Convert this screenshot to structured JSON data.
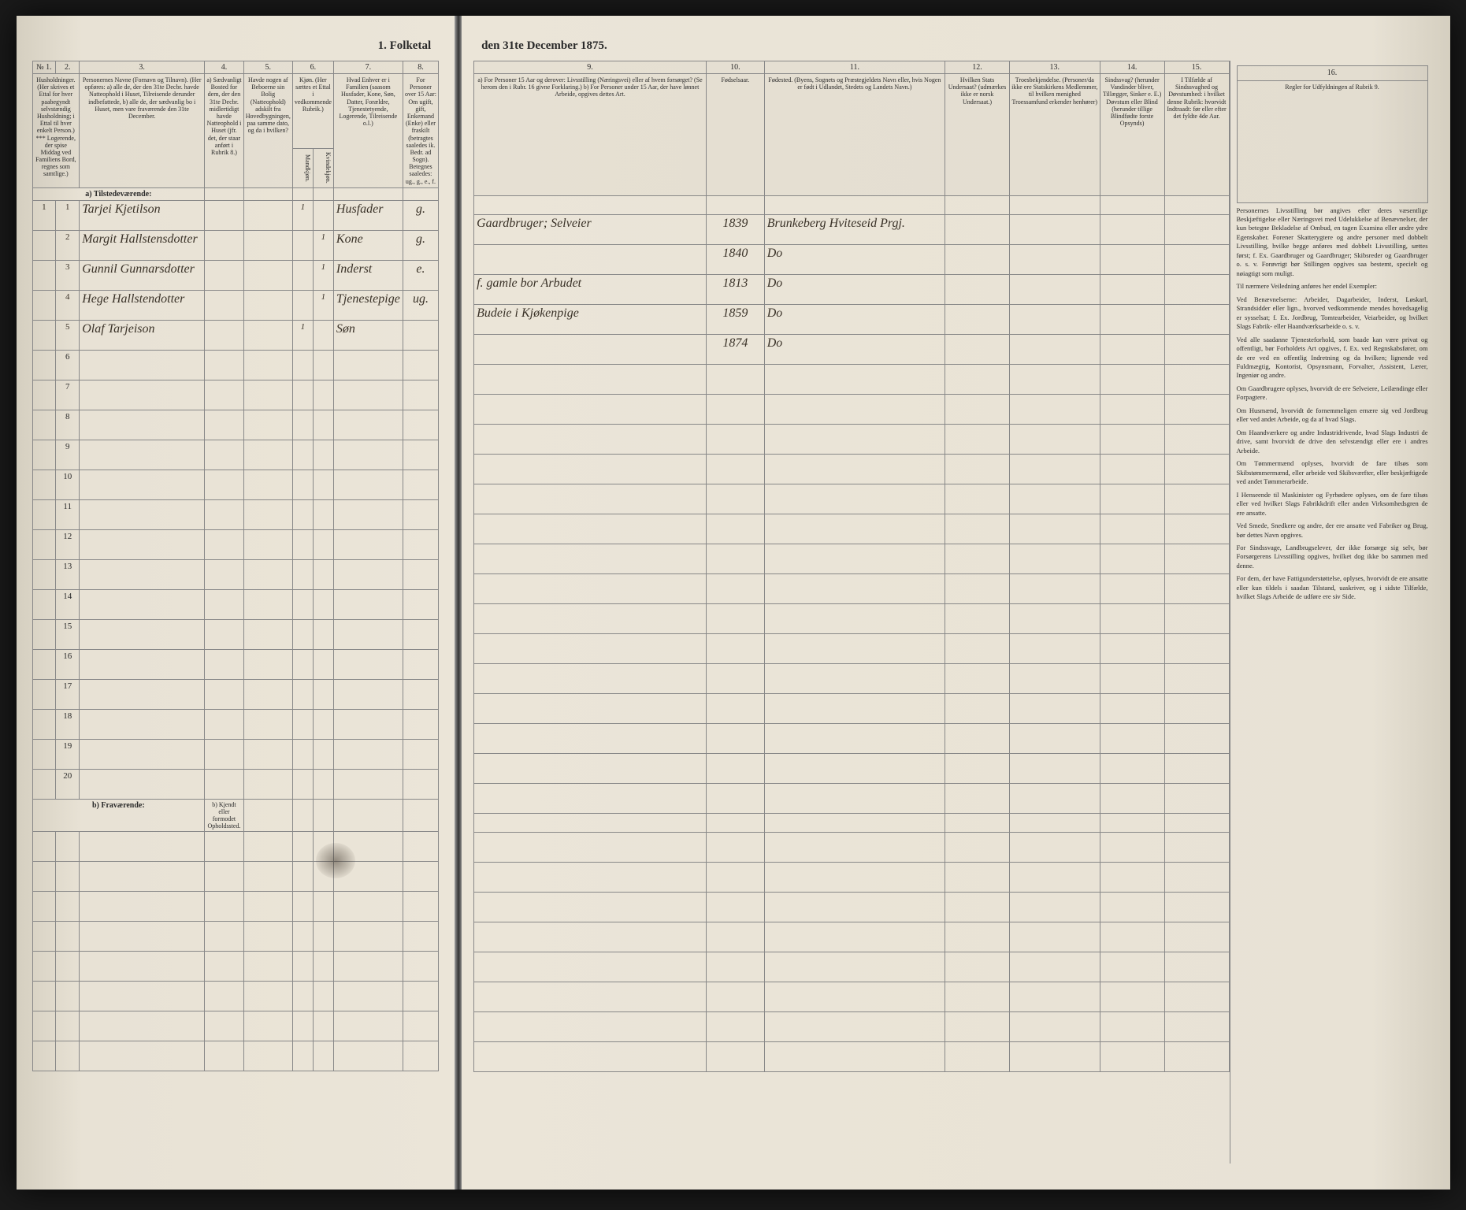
{
  "title_left": "1. Folketal",
  "title_right": "den 31te December 1875.",
  "left_columns": {
    "c1": "№ 1.",
    "c2": "2.",
    "c3": "3.",
    "c4": "4.",
    "c5": "5.",
    "c6": "6.",
    "c7": "7.",
    "c8": "8."
  },
  "left_headers": {
    "h1": "Husholdninger. (Her skrives et Ettal for hver paabegyndt selvstændig Husholdning; i Ettal til hver enkelt Person.) *** Logerende, der spise Middag ved Familiens Bord, regnes som samtlige.)",
    "h3": "Personernes Navne (Fornavn og Tilnavn).\n(Her opføres:\na) alle de, der den 31te Decbr. havde Natteophold i Huset, Tilreisende derunder indbefattede,\nb) alle de, der sædvanlig bo i Huset, men vare fraværende den 31te December.",
    "h4": "a) Sædvanligt Bosted for dem, der den 31te Decbr. midlertidigt havde Natteophold i Huset (jfr. det, der staar anført i Rubrik 8.)",
    "h5": "Havde nogen af Beboerne sin Bolig (Natteophold) adskilt fra Hovedbygningen, paa samme dato, og da i hvilken?",
    "h6": "Kjøn. (Her sættes et Ettal i vedkommende Rubrik.)",
    "h6a": "Mandkjøn.",
    "h6b": "Kvindekjøn.",
    "h7": "Hvad Enhver er i Familien (saasom Husfader, Kone, Søn, Datter, Forældre, Tjenestetyende, Logerende, Tilreisende o.l.)",
    "h8": "For Personer over 15 Aar: Om ugift, gift, Enkemand (Enke) eller fraskilt (betragtes saaledes ik. Bedr. ad Sogn). Betegnes saaledes: ug., g., e., f."
  },
  "right_columns": {
    "c9": "9.",
    "c10": "10.",
    "c11": "11.",
    "c12": "12.",
    "c13": "13.",
    "c14": "14.",
    "c15": "15.",
    "c16": "16."
  },
  "right_headers": {
    "h9": "a) For Personer 15 Aar og derover: Livsstilling (Næringsvei) eller af hvem forsørget? (Se herom den i Rubr. 16 givne Forklaring.)\nb) For Personer under 15 Aar, der have lønnet Arbeide, opgives dettes Art.",
    "h10": "Fødselsaar.",
    "h11": "Fødested. (Byens, Sognets og Præstegjeldets Navn eller, hvis Nogen er født i Udlandet, Stedets og Landets Navn.)",
    "h12": "Hvilken Stats Undersaat? (udmærkes ikke er norsk Undersaat.)",
    "h13": "Troesbekjendelse. (Personer/da ikke ere Statskirkens Medlemmer, til hvilken menighed Troessamfund erkender henhører)",
    "h14": "Sindssvag? (herunder Vandinder bliver, Tillægger, Sinker e. E.) Døvstum eller Blind (herunder tillige Blindfødte forste Opsynds)",
    "h15": "I Tilfælde af Sindssvaghed og Døvstumhed: i hvilket denne Rubrik: hvorvidt Indtraadt: før eller efter det fyldte 4de Aar.",
    "h16": "Regler for Udfyldningen af Rubrik 9."
  },
  "section_a": "a) Tilstedeværende:",
  "section_b": "b) Fraværende:",
  "section_b_note": "b) Kjendt eller formodet Opholdssted.",
  "rows": [
    {
      "num": "1",
      "hh": "1",
      "name": "Tarjei Kjetilson",
      "c6a": "1",
      "c6b": "",
      "c7": "Husfader",
      "c8": "g.",
      "c9": "Gaardbruger; Selveier",
      "c10": "1839",
      "c11": "Brunkeberg Hviteseid Prgj."
    },
    {
      "num": "2",
      "hh": "",
      "name": "Margit Hallstensdotter",
      "c6a": "",
      "c6b": "1",
      "c7": "Kone",
      "c8": "g.",
      "c9": "",
      "c10": "1840",
      "c11": "Do"
    },
    {
      "num": "3",
      "hh": "",
      "name": "Gunnil Gunnarsdotter",
      "c6a": "",
      "c6b": "1",
      "c7": "Inderst",
      "c8": "e.",
      "c9": "f. gamle bor Arbudet",
      "c10": "1813",
      "c11": "Do"
    },
    {
      "num": "4",
      "hh": "",
      "name": "Hege Hallstendotter",
      "c6a": "",
      "c6b": "1",
      "c7": "Tjenestepige",
      "c8": "ug.",
      "c9": "Budeie i Kjøkenpige",
      "c10": "1859",
      "c11": "Do"
    },
    {
      "num": "5",
      "hh": "",
      "name": "Olaf Tarjeison",
      "c6a": "1",
      "c6b": "",
      "c7": "Søn",
      "c8": "",
      "c9": "",
      "c10": "1874",
      "c11": "Do"
    }
  ],
  "empty_rows_a": [
    "6",
    "7",
    "8",
    "9",
    "10",
    "11",
    "12",
    "13",
    "14",
    "15",
    "16",
    "17",
    "18",
    "19",
    "20"
  ],
  "empty_rows_b": 8,
  "instructions": {
    "title": "",
    "paragraphs": [
      "Personernes Livsstilling bør angives efter deres væsentlige Beskjæftigelse eller Næringsvei med Udelukkelse af Benævnelser, der kun betegne Bekladelse af Ombud, en tagen Examina eller andre ydre Egenskaber. Forener Skatterygtere og andre personer med dobbelt Livsstilling, hvilke begge anføres med dobbelt Livsstilling, sættes først; f. Ex. Gaardbruger og Gaardbruger; Skibsreder og Gaardbruger o. s. v. Forøvrigt bør Stillingen opgives saa bestemt, specielt og nøiagtigt som muligt.",
      "Til nærmere Veiledning anføres her endel Exempler:",
      "Ved Benævnelserne: Arbeider, Dagarbeider, Inderst, Løskarl, Strandsidder eller lign., hvorved vedkommende mendes hovedsagelig er sysselsat; f. Ex. Jordbrug, Tomtearbeider, Veiarbeider, og hvilket Slags Fabrik- eller Haandværksarbeide o. s. v.",
      "Ved alle saadanne Tjenesteforhold, som baade kan være privat og offentligt, bør Forholdets Art opgives, f. Ex. ved Regnskabsfører, om de ere ved en offentlig Indretning og da hvilken; lignende ved Fuldmægtig, Kontorist, Opsynsmann, Forvalter, Assistent, Lærer, Ingeniør og andre.",
      "Om Gaardbrugere oplyses, hvorvidt de ere Selveiere, Leilændinge eller Forpagtere.",
      "Om Husmænd, hvorvidt de fornemmeligen ernære sig ved Jordbrug eller ved andet Arbeide, og da af hvad Slags.",
      "Om Haandværkere og andre Industridrivende, hvad Slags Industri de drive, samt hvorvidt de drive den selvstændigt eller ere i andres Arbeide.",
      "Om Tømmermænd oplyses, hvorvidt de fare tilsøs som Skibstømmermænd, eller arbeide ved Skibsværfter, eller beskjæftigede ved andet Tømmerarbeide.",
      "I Henseende til Maskinister og Fyrbødere oplyses, om de fare tilsøs eller ved hvilket Slags Fabrikkdrift eller anden Virksomhedsgren de ere ansatte.",
      "Ved Smede, Snedkere og andre, der ere ansatte ved Fabriker og Brug, bør dettes Navn opgives.",
      "For Sindssvage, Landbrugselever, der ikke forsørge sig selv, bør Forsørgerens Livsstilling opgives, hvilket dog ikke bo sammen med denne.",
      "For dem, der have Fattigunderstøttelse, oplyses, hvorvidt de ere ansatte eller kun tildels i saadan Tilstand, uaskriver, og i sidste Tilfælde, hvilket Slags Arbeide de udføre ere siv Side."
    ]
  },
  "colors": {
    "page_bg": "#e8e2d5",
    "border": "#888888",
    "text": "#2a2a2a",
    "handwriting": "#3a3228",
    "outer_bg": "#1a1a1a"
  }
}
